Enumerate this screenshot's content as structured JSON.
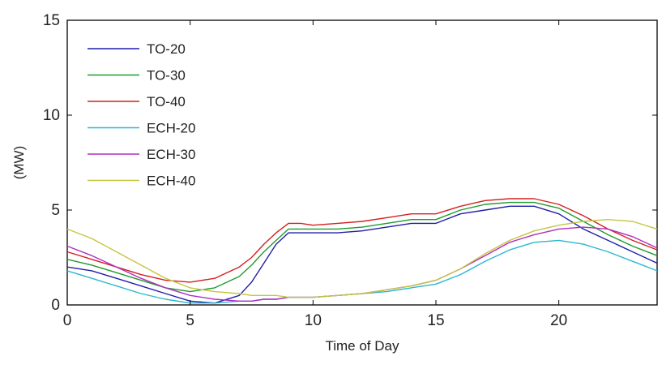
{
  "chart_data": {
    "type": "line",
    "title": "",
    "xlabel": "Time of Day",
    "ylabel": "(MW)",
    "xlim": [
      0,
      24
    ],
    "ylim": [
      0,
      15
    ],
    "xticks": [
      0,
      5,
      10,
      15,
      20
    ],
    "yticks": [
      0,
      5,
      10,
      15
    ],
    "grid": false,
    "legend_position": "top-left",
    "x": [
      0,
      1,
      2,
      3,
      4,
      5,
      6,
      7,
      7.5,
      8,
      8.5,
      9,
      9.5,
      10,
      11,
      12,
      13,
      14,
      15,
      16,
      17,
      18,
      19,
      20,
      21,
      22,
      23,
      24
    ],
    "series": [
      {
        "name": "TO-20",
        "color": "#1f1fa8",
        "values": [
          2.0,
          1.8,
          1.4,
          1.0,
          0.6,
          0.2,
          0.1,
          0.5,
          1.2,
          2.2,
          3.2,
          3.8,
          3.8,
          3.8,
          3.8,
          3.9,
          4.1,
          4.3,
          4.3,
          4.8,
          5.0,
          5.2,
          5.2,
          4.8,
          4.0,
          3.4,
          2.8,
          2.2
        ]
      },
      {
        "name": "TO-30",
        "color": "#1f9a2e",
        "values": [
          2.4,
          2.1,
          1.7,
          1.3,
          0.9,
          0.7,
          0.9,
          1.5,
          2.1,
          2.8,
          3.4,
          4.0,
          4.0,
          4.0,
          4.0,
          4.1,
          4.3,
          4.5,
          4.5,
          5.0,
          5.3,
          5.4,
          5.4,
          5.1,
          4.4,
          3.7,
          3.1,
          2.6
        ]
      },
      {
        "name": "TO-40",
        "color": "#d42020",
        "values": [
          2.8,
          2.4,
          2.0,
          1.6,
          1.3,
          1.2,
          1.4,
          2.0,
          2.5,
          3.2,
          3.8,
          4.3,
          4.3,
          4.2,
          4.3,
          4.4,
          4.6,
          4.8,
          4.8,
          5.2,
          5.5,
          5.6,
          5.6,
          5.3,
          4.7,
          4.0,
          3.4,
          2.9
        ]
      },
      {
        "name": "ECH-20",
        "color": "#2bb7d2",
        "values": [
          1.8,
          1.4,
          1.0,
          0.6,
          0.3,
          0.1,
          0.1,
          0.2,
          0.2,
          0.3,
          0.3,
          0.4,
          0.4,
          0.4,
          0.5,
          0.6,
          0.7,
          0.9,
          1.1,
          1.6,
          2.3,
          2.9,
          3.3,
          3.4,
          3.2,
          2.8,
          2.3,
          1.8
        ]
      },
      {
        "name": "ECH-30",
        "color": "#b02ec0",
        "values": [
          3.1,
          2.6,
          2.0,
          1.4,
          0.9,
          0.5,
          0.3,
          0.2,
          0.2,
          0.3,
          0.3,
          0.4,
          0.4,
          0.4,
          0.5,
          0.6,
          0.8,
          1.0,
          1.3,
          1.9,
          2.6,
          3.3,
          3.7,
          4.0,
          4.1,
          4.0,
          3.6,
          3.0
        ]
      },
      {
        "name": "ECH-40",
        "color": "#c7c443",
        "values": [
          4.0,
          3.5,
          2.8,
          2.1,
          1.4,
          0.9,
          0.7,
          0.6,
          0.5,
          0.5,
          0.5,
          0.4,
          0.4,
          0.4,
          0.5,
          0.6,
          0.8,
          1.0,
          1.3,
          1.9,
          2.7,
          3.4,
          3.9,
          4.2,
          4.4,
          4.5,
          4.4,
          4.0
        ]
      }
    ]
  }
}
